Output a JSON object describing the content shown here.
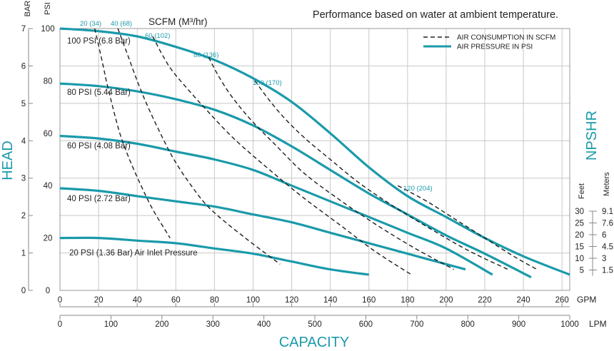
{
  "chart_data": {
    "type": "line",
    "title": "Performance based on water at ambient temperature.",
    "x_axis": {
      "label": "CAPACITY",
      "lpm_unit": "LPM",
      "lpm_ticks": [
        0,
        100,
        200,
        300,
        400,
        500,
        600,
        700,
        800,
        900,
        1000
      ],
      "gpm_unit": "GPM",
      "gpm_ticks": [
        0,
        20,
        40,
        60,
        80,
        100,
        120,
        140,
        160,
        180,
        200,
        220,
        240,
        260
      ],
      "xlim_gpm": [
        0,
        264
      ]
    },
    "y_axis": {
      "label": "HEAD",
      "psi_unit": "PSI",
      "psi_ticks": [
        0,
        20,
        40,
        60,
        80,
        100
      ],
      "bar_unit": "BAR",
      "bar_ticks": [
        0,
        1,
        2,
        3,
        4,
        5,
        6,
        7
      ],
      "ylim_psi": [
        0,
        100
      ]
    },
    "npshr_axis": {
      "label": "NPSHR",
      "feet_unit": "Feet",
      "meters_unit": "Meters",
      "feet_ticks": [
        "30",
        "25",
        "20",
        "15",
        "10",
        "5"
      ],
      "meters_ticks": [
        "9.1",
        "7.6",
        "6",
        "4.5",
        "3",
        "1.5"
      ]
    },
    "scfm_label": "SCFM (M³/hr)",
    "legend": [
      {
        "name": "AIR CONSUMPTION IN SCFM",
        "style": "dashed"
      },
      {
        "name": "AIR PRESSURE IN PSI",
        "style": "solid"
      }
    ],
    "series": [
      {
        "name": "100 PSI (6.8 Bar)",
        "x_gpm": [
          0,
          20,
          40,
          60,
          80,
          100,
          120,
          140,
          160,
          180,
          200,
          220,
          240,
          264
        ],
        "y_psi": [
          100,
          99,
          97,
          93,
          88,
          81,
          72,
          60,
          47,
          36,
          28,
          20,
          13,
          6
        ]
      },
      {
        "name": "80 PSI (5.44 Bar)",
        "x_gpm": [
          0,
          20,
          40,
          60,
          80,
          100,
          120,
          140,
          160,
          180,
          200,
          220,
          244
        ],
        "y_psi": [
          79,
          78,
          76,
          73,
          69,
          63,
          55,
          46,
          37,
          29,
          21,
          14,
          5
        ]
      },
      {
        "name": "60 PSI (4.08 Bar)",
        "x_gpm": [
          0,
          20,
          40,
          60,
          80,
          100,
          120,
          140,
          160,
          180,
          200,
          224
        ],
        "y_psi": [
          59,
          58,
          56,
          53,
          50,
          46,
          40,
          34,
          28,
          22,
          16,
          6
        ]
      },
      {
        "name": "40 PSI (2.72 Bar)",
        "x_gpm": [
          0,
          20,
          40,
          60,
          80,
          100,
          120,
          140,
          160,
          180,
          200,
          210
        ],
        "y_psi": [
          39,
          38,
          36,
          34,
          32,
          29,
          26,
          22,
          18,
          14,
          10,
          8
        ]
      },
      {
        "name": "20 PSI (1.36 Bar) Air Inlet Pressure",
        "x_gpm": [
          0,
          20,
          40,
          60,
          80,
          100,
          120,
          140,
          160
        ],
        "y_psi": [
          20,
          20,
          19,
          18,
          16,
          14,
          11,
          8,
          6
        ]
      }
    ],
    "air_consumption": [
      {
        "label": "20 (34)",
        "x_gpm": [
          18,
          22,
          24,
          27,
          31,
          36,
          42,
          48,
          57
        ],
        "y_psi": [
          100,
          87,
          80,
          71,
          60,
          50,
          40,
          31,
          20
        ]
      },
      {
        "label": "40 (68)",
        "x_gpm": [
          30,
          35,
          40,
          45,
          52,
          59,
          68,
          78,
          96,
          114
        ],
        "y_psi": [
          100,
          90,
          80,
          71,
          60,
          50,
          40,
          31,
          20,
          10
        ]
      },
      {
        "label": "60 (102)",
        "x_gpm": [
          48,
          53,
          58,
          66,
          77,
          90,
          107,
          125,
          145,
          163,
          182
        ],
        "y_psi": [
          97,
          90,
          84,
          77,
          68,
          58,
          47,
          36,
          25,
          15,
          6
        ]
      },
      {
        "label": "80 (136)",
        "x_gpm": [
          77,
          82,
          89,
          99,
          111,
          126,
          144,
          164,
          184,
          204
        ],
        "y_psi": [
          89,
          82,
          74,
          65,
          56,
          45,
          35,
          25,
          16,
          8
        ]
      },
      {
        "label": "100 (170)",
        "x_gpm": [
          101,
          108,
          116,
          127,
          140,
          155,
          173,
          193,
          212,
          232
        ],
        "y_psi": [
          80,
          73,
          66,
          58,
          50,
          41,
          32,
          23,
          15,
          8
        ]
      },
      {
        "label": "120 (204)",
        "x_gpm": [
          175,
          190,
          205,
          220,
          235,
          247
        ],
        "y_psi": [
          40,
          34,
          27,
          20,
          13,
          8
        ]
      }
    ]
  }
}
